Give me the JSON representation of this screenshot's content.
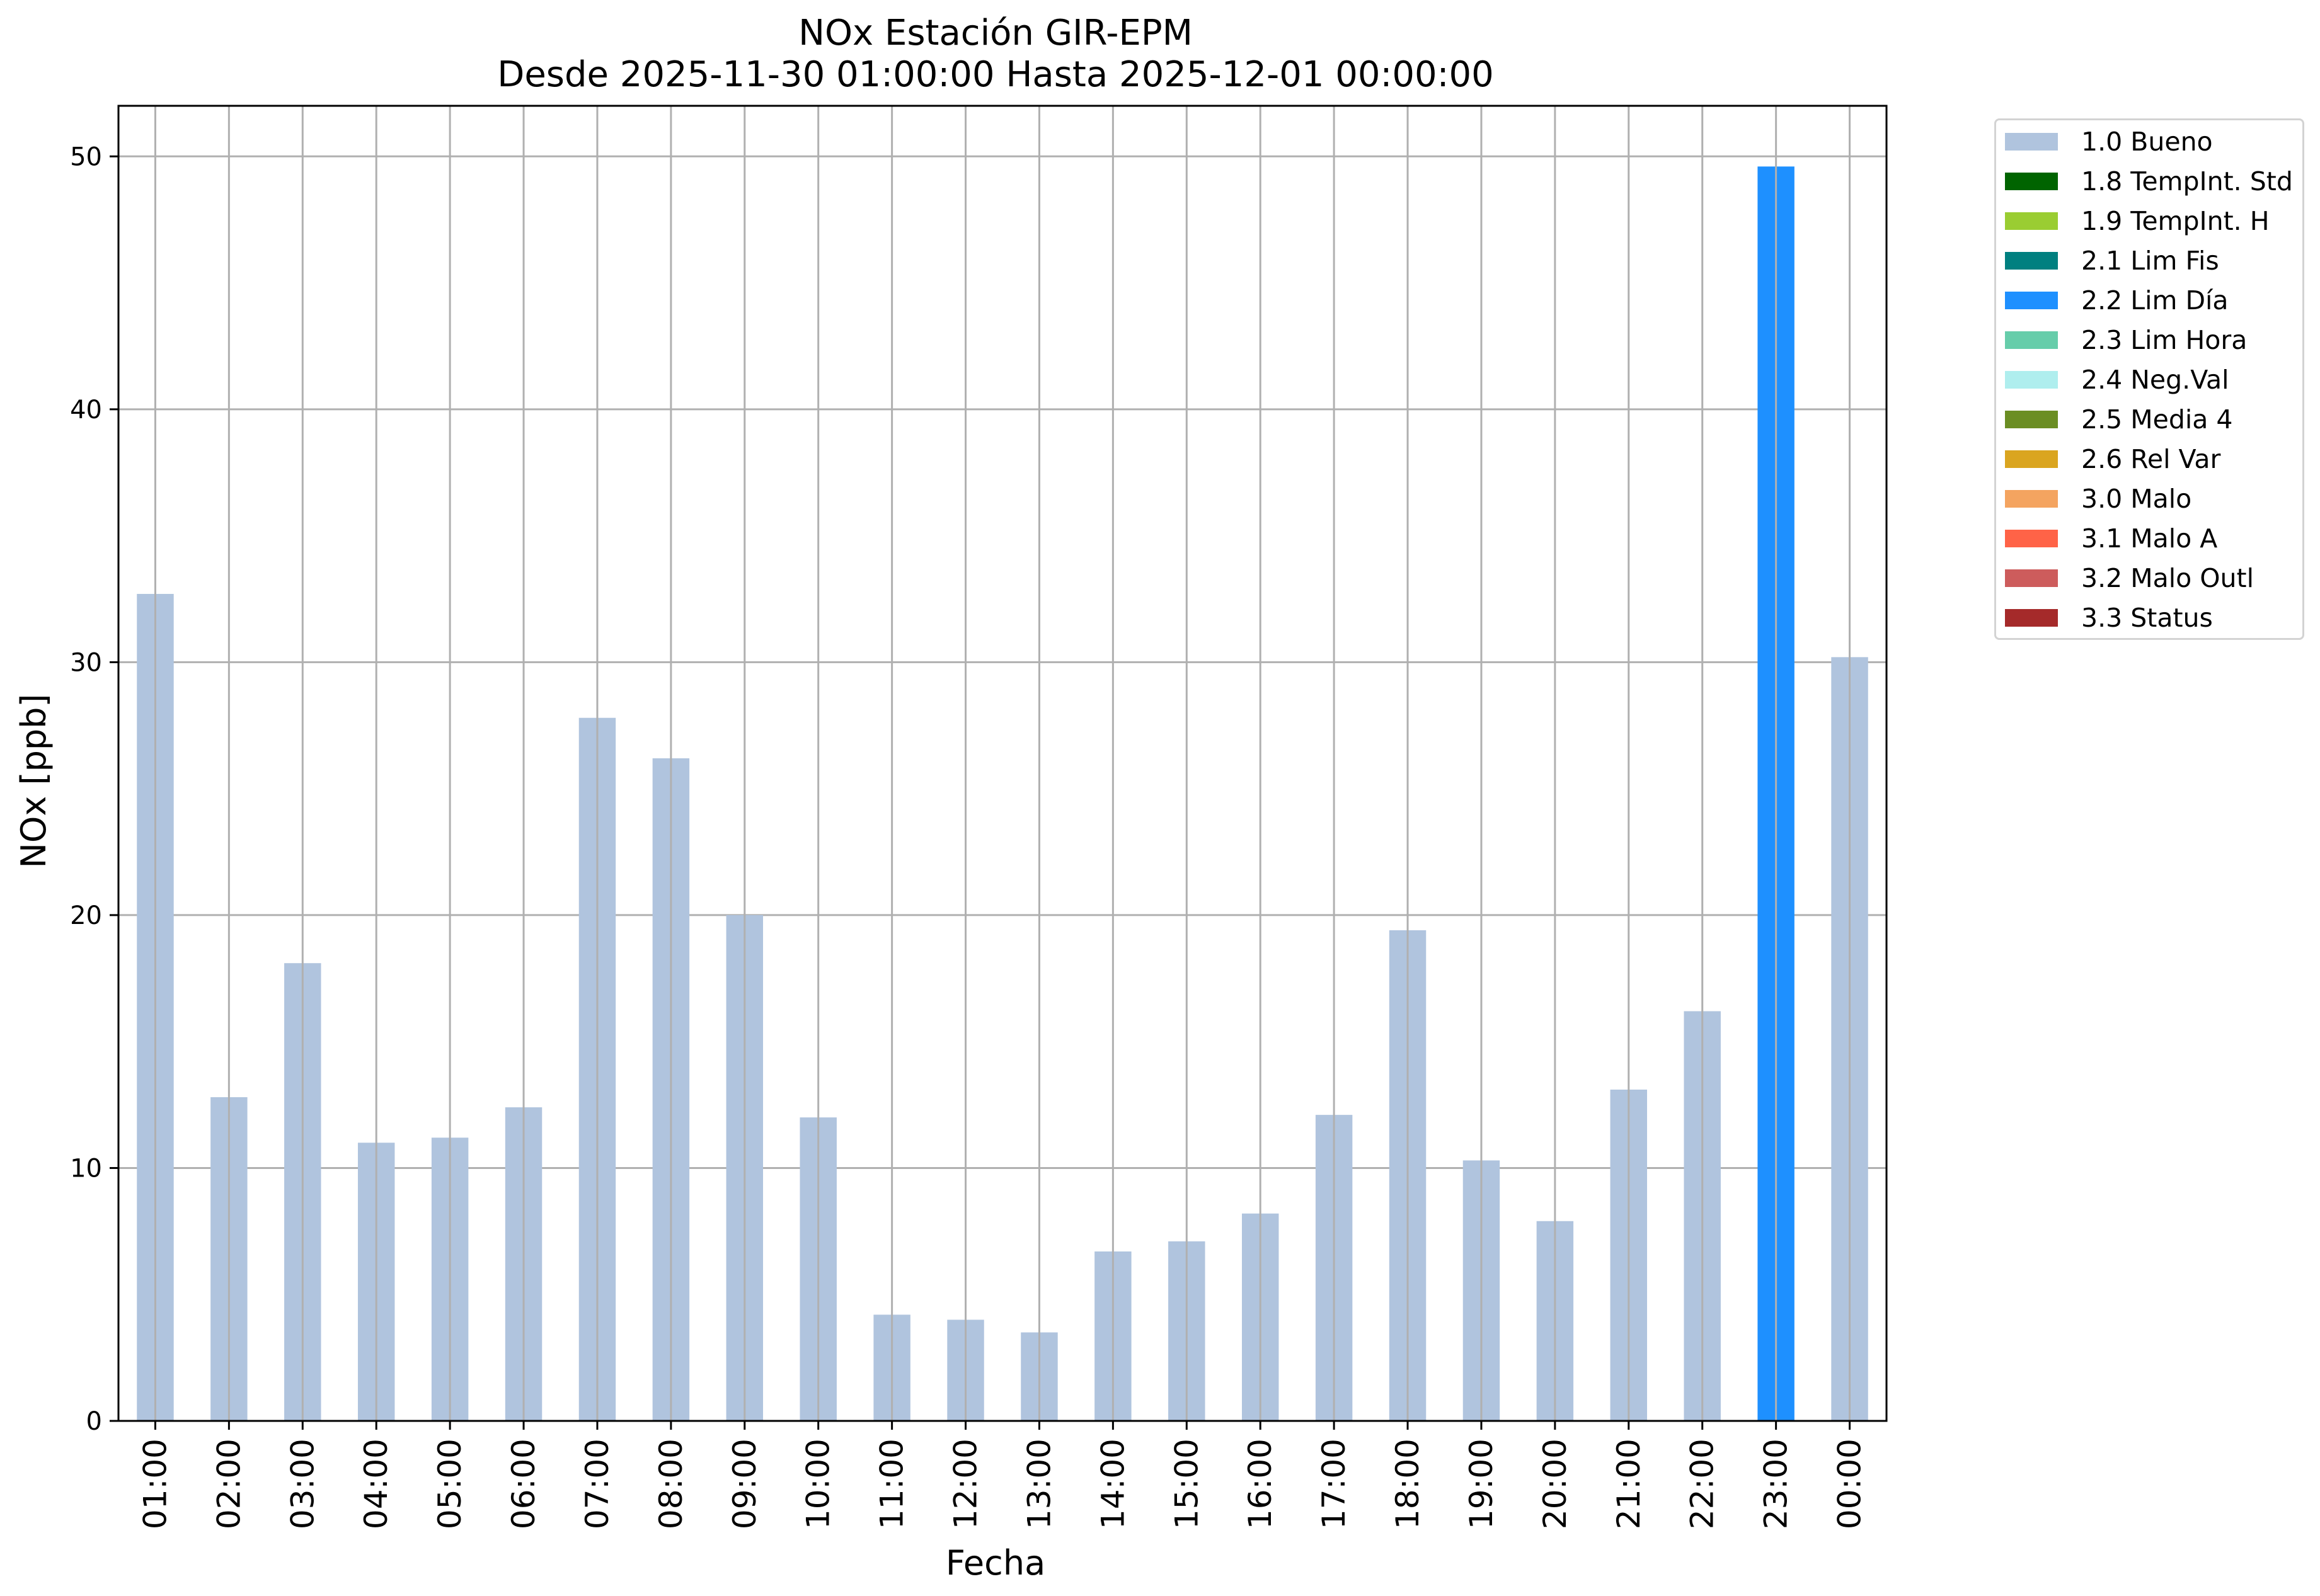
{
  "title": "NOx Estación GIR-EPM",
  "subtitle": "Desde 2025-11-30 01:00:00 Hasta 2025-12-01 00:00:00",
  "chart_data": {
    "type": "bar",
    "title": "NOx Estación GIR-EPM",
    "subtitle": "Desde 2025-11-30 01:00:00 Hasta 2025-12-01 00:00:00",
    "xlabel": "Fecha",
    "ylabel": "NOx [ppb]",
    "ylim": [
      0,
      52
    ],
    "yticks": [
      0,
      10,
      20,
      30,
      40,
      50
    ],
    "grid": true,
    "legend_position": "outside-top-right",
    "categories": [
      "01:00",
      "02:00",
      "03:00",
      "04:00",
      "05:00",
      "06:00",
      "07:00",
      "08:00",
      "09:00",
      "10:00",
      "11:00",
      "12:00",
      "13:00",
      "14:00",
      "15:00",
      "16:00",
      "17:00",
      "18:00",
      "19:00",
      "20:00",
      "21:00",
      "22:00",
      "23:00",
      "00:00"
    ],
    "values": [
      32.7,
      12.8,
      18.1,
      11.0,
      11.2,
      12.4,
      27.8,
      26.2,
      20.0,
      12.0,
      4.2,
      4.0,
      3.5,
      6.7,
      7.1,
      8.2,
      12.1,
      19.4,
      10.3,
      7.9,
      13.1,
      16.2,
      49.6,
      30.2
    ],
    "bar_flags": [
      "1.0 Bueno",
      "1.0 Bueno",
      "1.0 Bueno",
      "1.0 Bueno",
      "1.0 Bueno",
      "1.0 Bueno",
      "1.0 Bueno",
      "1.0 Bueno",
      "1.0 Bueno",
      "1.0 Bueno",
      "1.0 Bueno",
      "1.0 Bueno",
      "1.0 Bueno",
      "1.0 Bueno",
      "1.0 Bueno",
      "1.0 Bueno",
      "1.0 Bueno",
      "1.0 Bueno",
      "1.0 Bueno",
      "1.0 Bueno",
      "1.0 Bueno",
      "1.0 Bueno",
      "2.2 Lim Día",
      "1.0 Bueno"
    ],
    "legend": [
      {
        "label": "1.0 Bueno",
        "color": "#b0c4de"
      },
      {
        "label": "1.8 TempInt. Std",
        "color": "#006400"
      },
      {
        "label": "1.9 TempInt. H",
        "color": "#9acd32"
      },
      {
        "label": "2.1 Lim Fis",
        "color": "#008080"
      },
      {
        "label": "2.2 Lim Día",
        "color": "#1e90ff"
      },
      {
        "label": "2.3 Lim Hora",
        "color": "#66cdaa"
      },
      {
        "label": "2.4 Neg.Val",
        "color": "#afeeee"
      },
      {
        "label": "2.5 Media 4",
        "color": "#6b8e23"
      },
      {
        "label": "2.6 Rel Var",
        "color": "#daa520"
      },
      {
        "label": "3.0 Malo",
        "color": "#f4a460"
      },
      {
        "label": "3.1 Malo A",
        "color": "#ff6347"
      },
      {
        "label": "3.2 Malo Outl",
        "color": "#cd5c5c"
      },
      {
        "label": "3.3 Status",
        "color": "#a52a2a"
      }
    ]
  }
}
